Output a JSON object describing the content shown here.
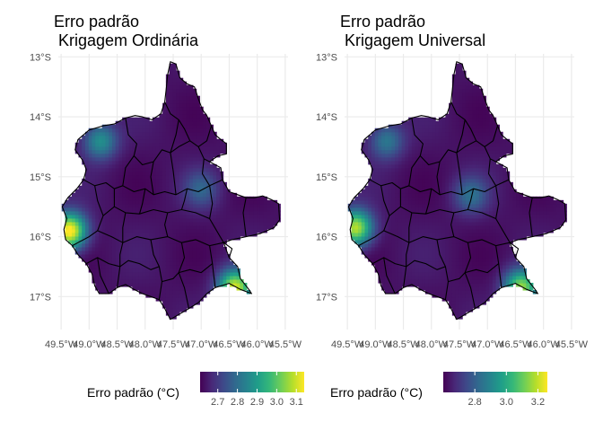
{
  "panels": [
    {
      "title_line1": "Erro padrão",
      "title_line2": " Krigagem Ordinária",
      "legend_title": "Erro padrão (°C)",
      "legend_ticks": [
        "2.7",
        "2.8",
        "2.9",
        "3.0",
        "3.1"
      ],
      "legend_tick_values": [
        2.7,
        2.8,
        2.9,
        3.0,
        3.1
      ],
      "legend_range": [
        2.61,
        3.14
      ],
      "hotspots": [
        {
          "lon": -49.35,
          "lat": -15.9,
          "strength": 1.0
        },
        {
          "lon": -46.4,
          "lat": -16.85,
          "strength": 0.9
        },
        {
          "lon": -48.8,
          "lat": -14.4,
          "strength": 0.45
        },
        {
          "lon": -47.0,
          "lat": -15.2,
          "strength": 0.25
        }
      ]
    },
    {
      "title_line1": "Erro padrão",
      "title_line2": " Krigagem Universal",
      "legend_title": "Erro padrão (°C)",
      "legend_ticks": [
        "2.8",
        "3.0",
        "3.2"
      ],
      "legend_tick_values": [
        2.8,
        3.0,
        3.2
      ],
      "legend_range": [
        2.6,
        3.26
      ],
      "hotspots": [
        {
          "lon": -49.35,
          "lat": -15.85,
          "strength": 0.85
        },
        {
          "lon": -46.4,
          "lat": -16.85,
          "strength": 0.8
        },
        {
          "lon": -48.8,
          "lat": -14.4,
          "strength": 0.35
        },
        {
          "lon": -47.3,
          "lat": -15.3,
          "strength": 0.3
        }
      ]
    }
  ],
  "axes": {
    "x_ticks": [
      "49.5°W",
      "49.0°W",
      "48.5°W",
      "48.0°W",
      "47.5°W",
      "47.0°W",
      "46.5°W",
      "46.0°W",
      "45.5°W"
    ],
    "x_values": [
      -49.5,
      -49.0,
      -48.5,
      -48.0,
      -47.5,
      -47.0,
      -46.5,
      -46.0,
      -45.5
    ],
    "y_ticks": [
      "13°S",
      "14°S",
      "15°S",
      "16°S",
      "17°S"
    ],
    "y_values": [
      -13,
      -14,
      -15,
      -16,
      -17
    ],
    "xlim": [
      -49.55,
      -45.45
    ],
    "ylim": [
      -17.55,
      -12.95
    ]
  },
  "map_data": {
    "projection": "lon/lat",
    "grid": true,
    "legend_placement": "bottom",
    "colorscale": "viridis",
    "colors": [
      "#440154",
      "#482878",
      "#3e4989",
      "#31688e",
      "#26828e",
      "#1f9e89",
      "#35b779",
      "#6ece58",
      "#b5de2b",
      "#fde725"
    ],
    "outline": [
      [
        -47.55,
        -13.08
      ],
      [
        -47.45,
        -13.12
      ],
      [
        -47.38,
        -13.35
      ],
      [
        -47.25,
        -13.45
      ],
      [
        -47.12,
        -13.5
      ],
      [
        -47.05,
        -13.7
      ],
      [
        -46.98,
        -13.88
      ],
      [
        -46.9,
        -13.98
      ],
      [
        -46.82,
        -14.15
      ],
      [
        -46.75,
        -14.3
      ],
      [
        -46.65,
        -14.38
      ],
      [
        -46.55,
        -14.45
      ],
      [
        -46.55,
        -14.62
      ],
      [
        -46.7,
        -14.65
      ],
      [
        -46.85,
        -14.75
      ],
      [
        -46.65,
        -14.85
      ],
      [
        -46.62,
        -15.05
      ],
      [
        -46.5,
        -15.25
      ],
      [
        -46.35,
        -15.3
      ],
      [
        -46.2,
        -15.35
      ],
      [
        -46.05,
        -15.35
      ],
      [
        -45.9,
        -15.32
      ],
      [
        -45.75,
        -15.38
      ],
      [
        -45.62,
        -15.45
      ],
      [
        -45.6,
        -15.72
      ],
      [
        -45.7,
        -15.85
      ],
      [
        -45.95,
        -15.95
      ],
      [
        -46.2,
        -16.0
      ],
      [
        -46.45,
        -16.05
      ],
      [
        -46.6,
        -16.1
      ],
      [
        -46.5,
        -16.35
      ],
      [
        -46.35,
        -16.5
      ],
      [
        -46.3,
        -16.7
      ],
      [
        -46.15,
        -16.88
      ],
      [
        -46.1,
        -16.95
      ],
      [
        -46.3,
        -16.88
      ],
      [
        -46.5,
        -16.78
      ],
      [
        -46.75,
        -16.85
      ],
      [
        -46.9,
        -16.95
      ],
      [
        -47.05,
        -17.1
      ],
      [
        -47.22,
        -17.2
      ],
      [
        -47.4,
        -17.3
      ],
      [
        -47.55,
        -17.38
      ],
      [
        -47.65,
        -17.2
      ],
      [
        -47.75,
        -17.05
      ],
      [
        -47.9,
        -17.0
      ],
      [
        -48.05,
        -16.95
      ],
      [
        -48.2,
        -16.88
      ],
      [
        -48.35,
        -16.8
      ],
      [
        -48.5,
        -16.85
      ],
      [
        -48.65,
        -16.95
      ],
      [
        -48.82,
        -16.95
      ],
      [
        -48.9,
        -16.82
      ],
      [
        -48.95,
        -16.62
      ],
      [
        -49.05,
        -16.45
      ],
      [
        -49.2,
        -16.3
      ],
      [
        -49.3,
        -16.15
      ],
      [
        -49.42,
        -16.05
      ],
      [
        -49.45,
        -15.88
      ],
      [
        -49.4,
        -15.7
      ],
      [
        -49.48,
        -15.5
      ],
      [
        -49.38,
        -15.35
      ],
      [
        -49.22,
        -15.2
      ],
      [
        -49.1,
        -15.05
      ],
      [
        -49.05,
        -14.88
      ],
      [
        -49.12,
        -14.72
      ],
      [
        -49.25,
        -14.55
      ],
      [
        -49.2,
        -14.38
      ],
      [
        -49.0,
        -14.22
      ],
      [
        -48.75,
        -14.15
      ],
      [
        -48.55,
        -14.12
      ],
      [
        -48.35,
        -14.02
      ],
      [
        -48.18,
        -13.98
      ],
      [
        -48.05,
        -14.0
      ],
      [
        -47.88,
        -14.05
      ],
      [
        -47.72,
        -13.95
      ],
      [
        -47.65,
        -13.75
      ],
      [
        -47.62,
        -13.5
      ],
      [
        -47.6,
        -13.3
      ],
      [
        -47.55,
        -13.08
      ]
    ],
    "borders": [
      [
        [
          -48.35,
          -14.02
        ],
        [
          -48.3,
          -14.3
        ],
        [
          -48.15,
          -14.45
        ],
        [
          -48.2,
          -14.65
        ],
        [
          -48.05,
          -14.8
        ],
        [
          -47.85,
          -14.75
        ]
      ],
      [
        [
          -47.65,
          -13.75
        ],
        [
          -47.55,
          -13.95
        ],
        [
          -47.4,
          -14.05
        ],
        [
          -47.3,
          -14.2
        ],
        [
          -47.2,
          -14.4
        ],
        [
          -47.05,
          -14.5
        ],
        [
          -46.9,
          -14.4
        ],
        [
          -46.82,
          -14.15
        ]
      ],
      [
        [
          -47.85,
          -14.75
        ],
        [
          -47.7,
          -14.55
        ],
        [
          -47.55,
          -14.6
        ],
        [
          -47.4,
          -14.5
        ],
        [
          -47.2,
          -14.4
        ]
      ],
      [
        [
          -47.4,
          -14.05
        ],
        [
          -47.45,
          -14.3
        ],
        [
          -47.55,
          -14.6
        ]
      ],
      [
        [
          -47.05,
          -14.5
        ],
        [
          -46.95,
          -14.7
        ],
        [
          -46.85,
          -14.75
        ]
      ],
      [
        [
          -46.95,
          -14.7
        ],
        [
          -46.98,
          -14.95
        ],
        [
          -46.85,
          -15.15
        ],
        [
          -46.62,
          -15.05
        ]
      ],
      [
        [
          -49.1,
          -15.05
        ],
        [
          -48.9,
          -15.15
        ],
        [
          -48.7,
          -15.1
        ],
        [
          -48.55,
          -15.2
        ],
        [
          -48.4,
          -15.15
        ],
        [
          -48.2,
          -15.25
        ],
        [
          -48.0,
          -15.2
        ],
        [
          -47.85,
          -15.3
        ],
        [
          -47.65,
          -15.25
        ],
        [
          -47.45,
          -15.3
        ],
        [
          -47.25,
          -15.2
        ],
        [
          -47.05,
          -15.25
        ],
        [
          -46.85,
          -15.15
        ]
      ],
      [
        [
          -48.2,
          -14.65
        ],
        [
          -48.35,
          -14.85
        ],
        [
          -48.4,
          -15.15
        ]
      ],
      [
        [
          -47.85,
          -14.75
        ],
        [
          -47.9,
          -15.0
        ],
        [
          -47.85,
          -15.3
        ]
      ],
      [
        [
          -47.55,
          -14.6
        ],
        [
          -47.5,
          -14.9
        ],
        [
          -47.45,
          -15.3
        ]
      ],
      [
        [
          -48.9,
          -15.15
        ],
        [
          -48.85,
          -15.4
        ],
        [
          -48.75,
          -15.65
        ],
        [
          -48.85,
          -15.9
        ],
        [
          -49.0,
          -16.0
        ],
        [
          -49.2,
          -16.1
        ],
        [
          -49.3,
          -16.15
        ]
      ],
      [
        [
          -48.55,
          -15.2
        ],
        [
          -48.55,
          -15.5
        ],
        [
          -48.75,
          -15.65
        ]
      ],
      [
        [
          -48.55,
          -15.5
        ],
        [
          -48.35,
          -15.6
        ],
        [
          -48.1,
          -15.62
        ],
        [
          -47.85,
          -15.55
        ],
        [
          -47.6,
          -15.6
        ],
        [
          -47.35,
          -15.55
        ],
        [
          -47.1,
          -15.6
        ],
        [
          -46.85,
          -15.7
        ],
        [
          -46.6,
          -16.1
        ]
      ],
      [
        [
          -48.0,
          -15.2
        ],
        [
          -48.05,
          -15.45
        ],
        [
          -48.1,
          -15.62
        ]
      ],
      [
        [
          -47.25,
          -15.2
        ],
        [
          -47.3,
          -15.4
        ],
        [
          -47.35,
          -15.55
        ]
      ],
      [
        [
          -46.85,
          -15.15
        ],
        [
          -46.8,
          -15.45
        ],
        [
          -46.85,
          -15.7
        ]
      ],
      [
        [
          -48.85,
          -15.9
        ],
        [
          -48.6,
          -16.0
        ],
        [
          -48.4,
          -16.1
        ],
        [
          -48.15,
          -16.0
        ],
        [
          -47.9,
          -16.05
        ],
        [
          -47.6,
          -16.0
        ],
        [
          -47.35,
          -16.1
        ],
        [
          -47.1,
          -16.05
        ],
        [
          -46.85,
          -16.15
        ],
        [
          -46.6,
          -16.1
        ]
      ],
      [
        [
          -48.35,
          -15.6
        ],
        [
          -48.4,
          -15.85
        ],
        [
          -48.4,
          -16.1
        ]
      ],
      [
        [
          -47.6,
          -15.6
        ],
        [
          -47.65,
          -15.8
        ],
        [
          -47.6,
          -16.0
        ]
      ],
      [
        [
          -49.05,
          -16.45
        ],
        [
          -48.85,
          -16.35
        ],
        [
          -48.65,
          -16.45
        ],
        [
          -48.45,
          -16.5
        ],
        [
          -48.3,
          -16.4
        ],
        [
          -48.1,
          -16.45
        ],
        [
          -47.9,
          -16.55
        ],
        [
          -47.75,
          -16.5
        ]
      ],
      [
        [
          -48.4,
          -16.1
        ],
        [
          -48.45,
          -16.3
        ],
        [
          -48.45,
          -16.5
        ],
        [
          -48.5,
          -16.85
        ]
      ],
      [
        [
          -47.9,
          -16.05
        ],
        [
          -47.85,
          -16.3
        ],
        [
          -47.75,
          -16.5
        ],
        [
          -47.7,
          -16.75
        ],
        [
          -47.75,
          -17.05
        ]
      ],
      [
        [
          -47.35,
          -16.1
        ],
        [
          -47.3,
          -16.35
        ],
        [
          -47.4,
          -16.6
        ],
        [
          -47.3,
          -16.85
        ],
        [
          -47.22,
          -17.2
        ]
      ],
      [
        [
          -46.85,
          -16.15
        ],
        [
          -46.8,
          -16.45
        ],
        [
          -46.75,
          -16.85
        ]
      ],
      [
        [
          -47.4,
          -16.6
        ],
        [
          -47.2,
          -16.55
        ],
        [
          -47.0,
          -16.6
        ],
        [
          -46.8,
          -16.45
        ]
      ],
      [
        [
          -47.7,
          -16.75
        ],
        [
          -47.5,
          -16.7
        ],
        [
          -47.4,
          -16.6
        ]
      ],
      [
        [
          -46.6,
          -16.1
        ],
        [
          -46.45,
          -16.2
        ],
        [
          -46.5,
          -16.35
        ]
      ],
      [
        [
          -48.85,
          -16.35
        ],
        [
          -48.8,
          -16.65
        ],
        [
          -48.65,
          -16.95
        ]
      ],
      [
        [
          -46.2,
          -15.35
        ],
        [
          -46.25,
          -15.6
        ],
        [
          -46.2,
          -16.0
        ]
      ]
    ]
  }
}
